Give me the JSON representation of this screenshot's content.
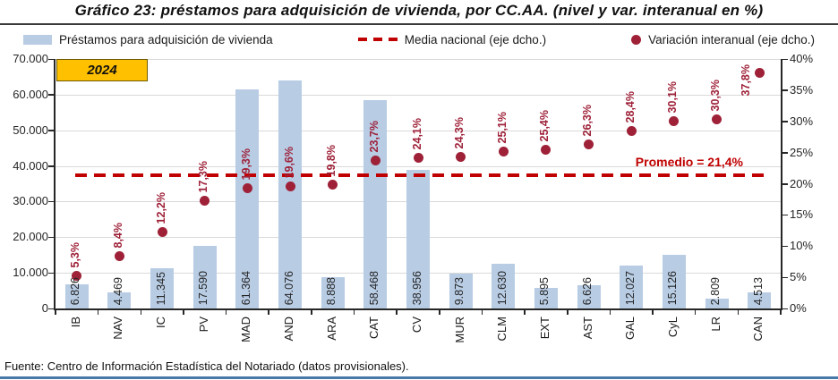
{
  "title": "Gráfico 23: préstamos para adquisición de vivienda, por CC.AA. (nivel y var. interanual en %)",
  "year_badge": "2024",
  "legend": [
    {
      "marker": "bar-swatch",
      "label": "Préstamos para adquisición de vivienda"
    },
    {
      "marker": "dash-swatch",
      "label": "Media nacional (eje dcho.)"
    },
    {
      "marker": "dot-swatch",
      "label": "Variación interanual (eje dcho.)"
    }
  ],
  "footer": "Fuente: Centro de Información Estadística del Notariado (datos provisionales).",
  "colors": {
    "bar": "#B8CCE4",
    "dot": "#9E2138",
    "dash": "#C00000",
    "pct_text": "#9E2138",
    "badge_fill": "#FFC000",
    "grid": "#D9D9D9",
    "axis": "#262626",
    "bottom_rule": "#4878A8"
  },
  "chart_data": {
    "type": "bar+scatter",
    "title": "Gráfico 23: préstamos para adquisición de vivienda, por CC.AA. (nivel y var. interanual en %)",
    "categories": [
      "IB",
      "NAV",
      "IC",
      "PV",
      "MAD",
      "AND",
      "ARA",
      "CAT",
      "CV",
      "MUR",
      "CLM",
      "EXT",
      "AST",
      "GAL",
      "CyL",
      "LR",
      "CAN"
    ],
    "series": [
      {
        "name": "Préstamos para adquisición de vivienda",
        "type": "bar",
        "axis": "left",
        "values": [
          6826,
          4469,
          11345,
          17590,
          61364,
          64076,
          8888,
          58468,
          38956,
          9873,
          12630,
          5895,
          6626,
          12027,
          15126,
          2809,
          4513
        ],
        "labels": [
          "6.826",
          "4.469",
          "11.345",
          "17.590",
          "61.364",
          "64.076",
          "8.888",
          "58.468",
          "38.956",
          "9.873",
          "12.630",
          "5.895",
          "6.626",
          "12.027",
          "15.126",
          "2.809",
          "4.513"
        ]
      },
      {
        "name": "Variación interanual (eje dcho.)",
        "type": "scatter",
        "axis": "right",
        "values": [
          5.3,
          8.4,
          12.2,
          17.3,
          19.3,
          19.6,
          19.8,
          23.7,
          24.1,
          24.3,
          25.1,
          25.4,
          26.3,
          28.4,
          30.1,
          30.3,
          37.8
        ],
        "labels": [
          "5,3%",
          "8,4%",
          "12,2%",
          "17,3%",
          "19,3%",
          "19,6%",
          "19,8%",
          "23,7%",
          "24,1%",
          "24,3%",
          "25,1%",
          "25,4%",
          "26,3%",
          "28,4%",
          "30,1%",
          "30,3%",
          "37,8%"
        ]
      }
    ],
    "reference_line": {
      "label": "Promedio = 21,4%",
      "value": 21.4,
      "axis": "right"
    },
    "left_axis": {
      "min": 0,
      "max": 70000,
      "tick_values": [
        0,
        10000,
        20000,
        30000,
        40000,
        50000,
        60000,
        70000
      ],
      "tick_labels": [
        "0",
        "10.000",
        "20.000",
        "30.000",
        "40.000",
        "50.000",
        "60.000",
        "70.000"
      ]
    },
    "right_axis": {
      "min": 0,
      "max": 40,
      "tick_values": [
        0,
        5,
        10,
        15,
        20,
        25,
        30,
        35,
        40
      ],
      "tick_labels": [
        "0%",
        "5%",
        "10%",
        "15%",
        "20%",
        "25%",
        "30%",
        "35%",
        "40%"
      ]
    },
    "grid": true,
    "legend_position": "top"
  }
}
